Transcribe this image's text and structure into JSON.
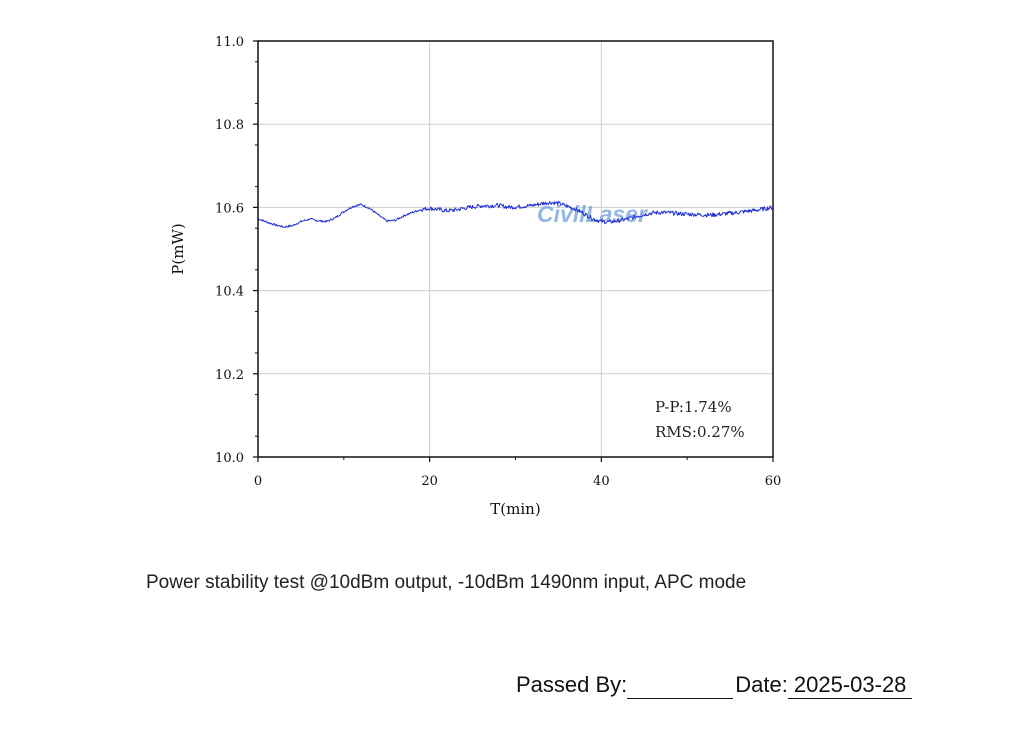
{
  "chart_data": {
    "type": "line",
    "xlabel": "T(min)",
    "ylabel": "P(mW)",
    "xlim": [
      0,
      60
    ],
    "ylim": [
      10.0,
      11.0
    ],
    "xticks": [
      "0",
      "20",
      "40",
      "60"
    ],
    "yticks": [
      "10.0",
      "10.2",
      "10.4",
      "10.6",
      "10.8",
      "11.0"
    ],
    "grid": true,
    "annotations": [
      "P-P:1.74%",
      "RMS:0.27%"
    ],
    "watermark": "CivilLaser",
    "series": [
      {
        "color": "#1f2fd6",
        "x": [
          0,
          1,
          2,
          3,
          4,
          5,
          6,
          7,
          8,
          9,
          10,
          11,
          12,
          13,
          14,
          15,
          16,
          17,
          18,
          19,
          20,
          21,
          22,
          23,
          24,
          25,
          26,
          27,
          28,
          29,
          30,
          31,
          32,
          33,
          34,
          35,
          36,
          37,
          38,
          39,
          40,
          41,
          42,
          43,
          44,
          45,
          46,
          47,
          48,
          49,
          50,
          51,
          52,
          53,
          54,
          55,
          56,
          57,
          58,
          59,
          60
        ],
        "y": [
          10.573,
          10.565,
          10.558,
          10.553,
          10.556,
          10.566,
          10.572,
          10.568,
          10.566,
          10.575,
          10.59,
          10.602,
          10.607,
          10.598,
          10.582,
          10.567,
          10.569,
          10.58,
          10.588,
          10.595,
          10.598,
          10.595,
          10.592,
          10.594,
          10.598,
          10.601,
          10.604,
          10.604,
          10.605,
          10.601,
          10.601,
          10.603,
          10.605,
          10.609,
          10.612,
          10.61,
          10.603,
          10.596,
          10.585,
          10.573,
          10.566,
          10.565,
          10.568,
          10.572,
          10.578,
          10.583,
          10.587,
          10.588,
          10.587,
          10.585,
          10.584,
          10.583,
          10.582,
          10.582,
          10.584,
          10.586,
          10.588,
          10.591,
          10.593,
          10.597,
          10.6
        ]
      }
    ]
  },
  "caption": "Power stability test @10dBm output, -10dBm 1490nm input, APC mode",
  "signoff": {
    "passed_by_label": "Passed  By:",
    "date_label": "Date:",
    "date_value": "2025-03-28"
  }
}
